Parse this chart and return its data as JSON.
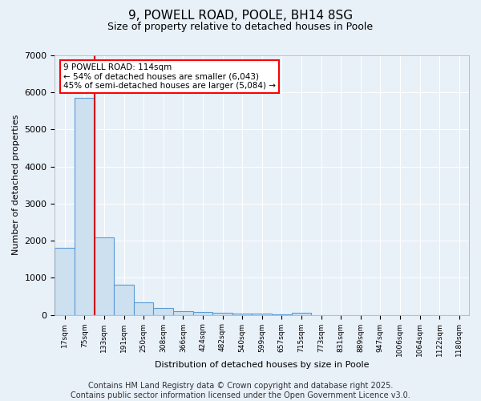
{
  "title1": "9, POWELL ROAD, POOLE, BH14 8SG",
  "title2": "Size of property relative to detached houses in Poole",
  "xlabel": "Distribution of detached houses by size in Poole",
  "ylabel": "Number of detached properties",
  "bar_color": "#cce0f0",
  "bar_edge_color": "#5b9bd5",
  "background_color": "#e8f0f8",
  "grid_color": "#ffffff",
  "annotation_text": "9 POWELL ROAD: 114sqm\n← 54% of detached houses are smaller (6,043)\n45% of semi-detached houses are larger (5,084) →",
  "vline_color": "#cc0000",
  "vline_position": 1.5,
  "ylim": [
    0,
    7000
  ],
  "bin_labels": [
    "17sqm",
    "75sqm",
    "133sqm",
    "191sqm",
    "250sqm",
    "308sqm",
    "366sqm",
    "424sqm",
    "482sqm",
    "540sqm",
    "599sqm",
    "657sqm",
    "715sqm",
    "773sqm",
    "831sqm",
    "889sqm",
    "947sqm",
    "1006sqm",
    "1064sqm",
    "1122sqm",
    "1180sqm"
  ],
  "bar_values": [
    1800,
    5850,
    2080,
    820,
    335,
    185,
    110,
    70,
    50,
    30,
    25,
    20,
    55,
    0,
    0,
    0,
    0,
    0,
    0,
    0,
    0
  ],
  "footer_text": "Contains HM Land Registry data © Crown copyright and database right 2025.\nContains public sector information licensed under the Open Government Licence v3.0.",
  "footer_fontsize": 7
}
